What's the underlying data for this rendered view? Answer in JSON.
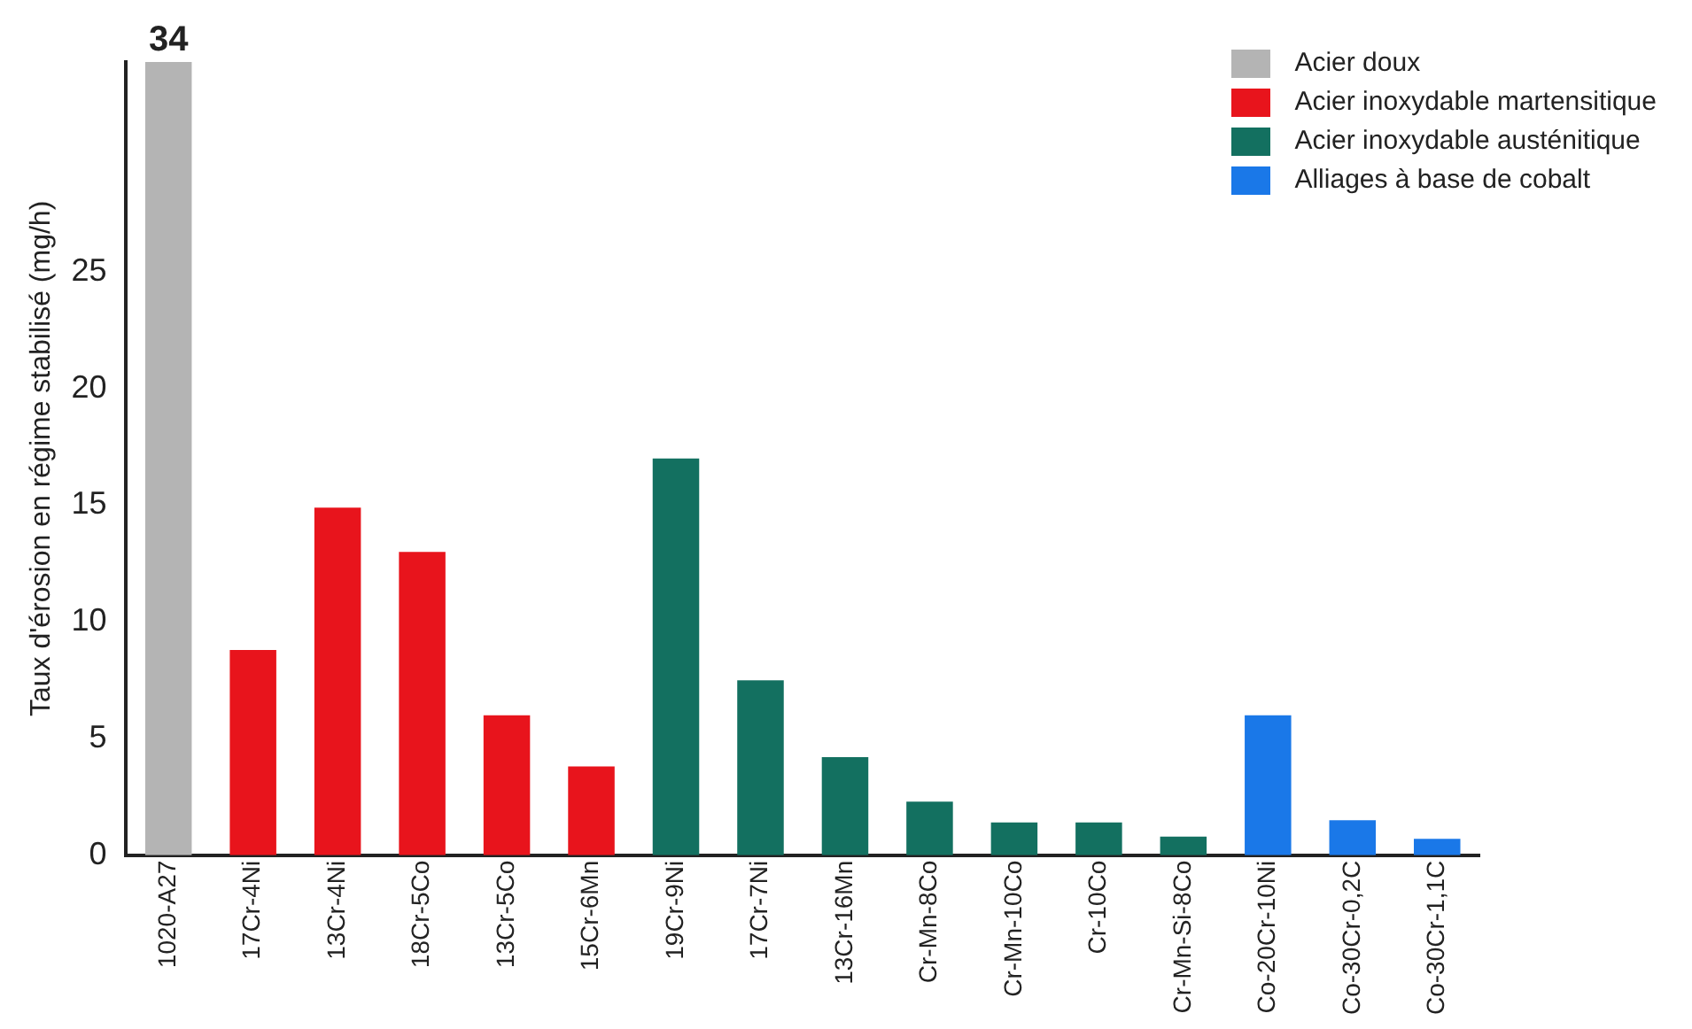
{
  "chart_data": {
    "type": "bar",
    "ylabel": "Taux d'érosion en régime stabilisé (mg/h)",
    "categories": [
      "1020-A27",
      "17Cr-4Ni",
      "13Cr-4Ni",
      "18Cr-5Co",
      "13Cr-5Co",
      "15Cr-6Mn",
      "19Cr-9Ni",
      "17Cr-7Ni",
      "13Cr-16Mn",
      "Cr-Mn-8Co",
      "Cr-Mn-10Co",
      "Cr-10Co",
      "Cr-Mn-Si-8Co",
      "Co-20Cr-10Ni",
      "Co-30Cr-0,2C",
      "Co-30Cr-1,1C"
    ],
    "series": [
      {
        "name": "Acier doux",
        "color": "#b4b4b4",
        "values": [
          34,
          null,
          null,
          null,
          null,
          null,
          null,
          null,
          null,
          null,
          null,
          null,
          null,
          null,
          null,
          null
        ],
        "value_labels": [
          "34",
          null,
          null,
          null,
          null,
          null,
          null,
          null,
          null,
          null,
          null,
          null,
          null,
          null,
          null,
          null
        ]
      },
      {
        "name": "Acier inoxydable martensitique",
        "color": "#e8141c",
        "values": [
          null,
          8.8,
          14.9,
          13.0,
          6.0,
          3.8,
          null,
          null,
          null,
          null,
          null,
          null,
          null,
          null,
          null,
          null
        ]
      },
      {
        "name": "Acier inoxydable austénitique",
        "color": "#137060",
        "values": [
          null,
          null,
          null,
          null,
          null,
          null,
          17.0,
          7.5,
          4.2,
          2.3,
          1.4,
          1.4,
          0.8,
          null,
          null,
          null
        ]
      },
      {
        "name": "Alliages à base de cobalt",
        "color": "#1a78e8",
        "values": [
          null,
          null,
          null,
          null,
          null,
          null,
          null,
          null,
          null,
          null,
          null,
          null,
          null,
          6.0,
          1.5,
          0.7
        ]
      }
    ],
    "ylim": [
      0,
      34
    ],
    "yticks": [
      0,
      5,
      10,
      15,
      20,
      25
    ],
    "grid": false,
    "legend": "top right"
  }
}
